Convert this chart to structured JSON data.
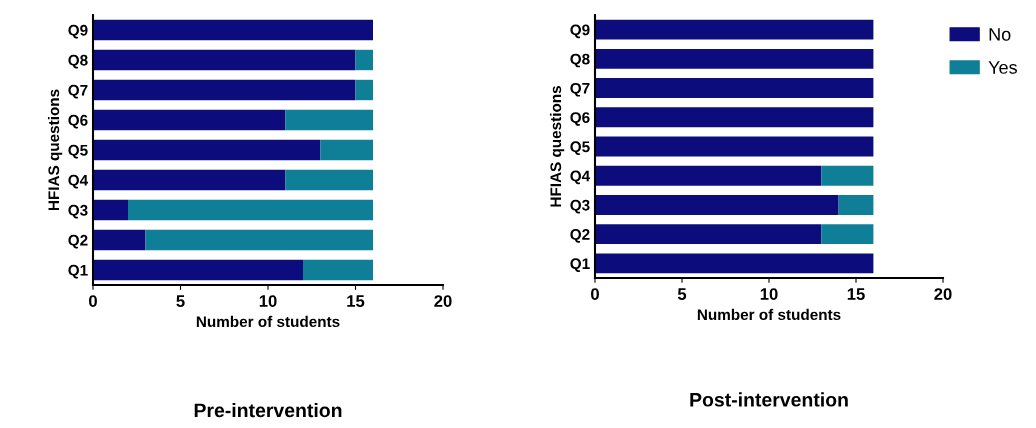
{
  "chart_data": [
    {
      "type": "bar",
      "orientation": "horizontal",
      "stacked": true,
      "title": "Pre-intervention",
      "xlabel": "Number of students",
      "ylabel": "HFIAS questions",
      "categories": [
        "Q9",
        "Q8",
        "Q7",
        "Q6",
        "Q5",
        "Q4",
        "Q3",
        "Q2",
        "Q1"
      ],
      "series": [
        {
          "color": "#0c0c7c",
          "values": [
            16,
            15,
            15,
            11,
            13,
            11,
            2,
            3,
            12
          ]
        },
        {
          "color": "#0e7f96",
          "values": [
            0,
            1,
            1,
            5,
            3,
            5,
            14,
            13,
            4
          ]
        }
      ],
      "xlim": [
        0,
        20
      ],
      "xticks": [
        0,
        5,
        10,
        15,
        20
      ]
    },
    {
      "type": "bar",
      "orientation": "horizontal",
      "stacked": true,
      "title": "Post-intervention",
      "xlabel": "Number of students",
      "ylabel": "HFIAS questions",
      "categories": [
        "Q9",
        "Q8",
        "Q7",
        "Q6",
        "Q5",
        "Q4",
        "Q3",
        "Q2",
        "Q1"
      ],
      "series": [
        {
          "name": "No",
          "color": "#0c0c7c",
          "values": [
            16,
            16,
            16,
            16,
            16,
            13,
            14,
            13,
            16
          ]
        },
        {
          "name": "Yes",
          "color": "#0e7f96",
          "values": [
            0,
            0,
            0,
            0,
            0,
            3,
            2,
            3,
            0
          ]
        }
      ],
      "xlim": [
        0,
        20
      ],
      "xticks": [
        0,
        5,
        10,
        15,
        20
      ],
      "legend": "right"
    }
  ]
}
